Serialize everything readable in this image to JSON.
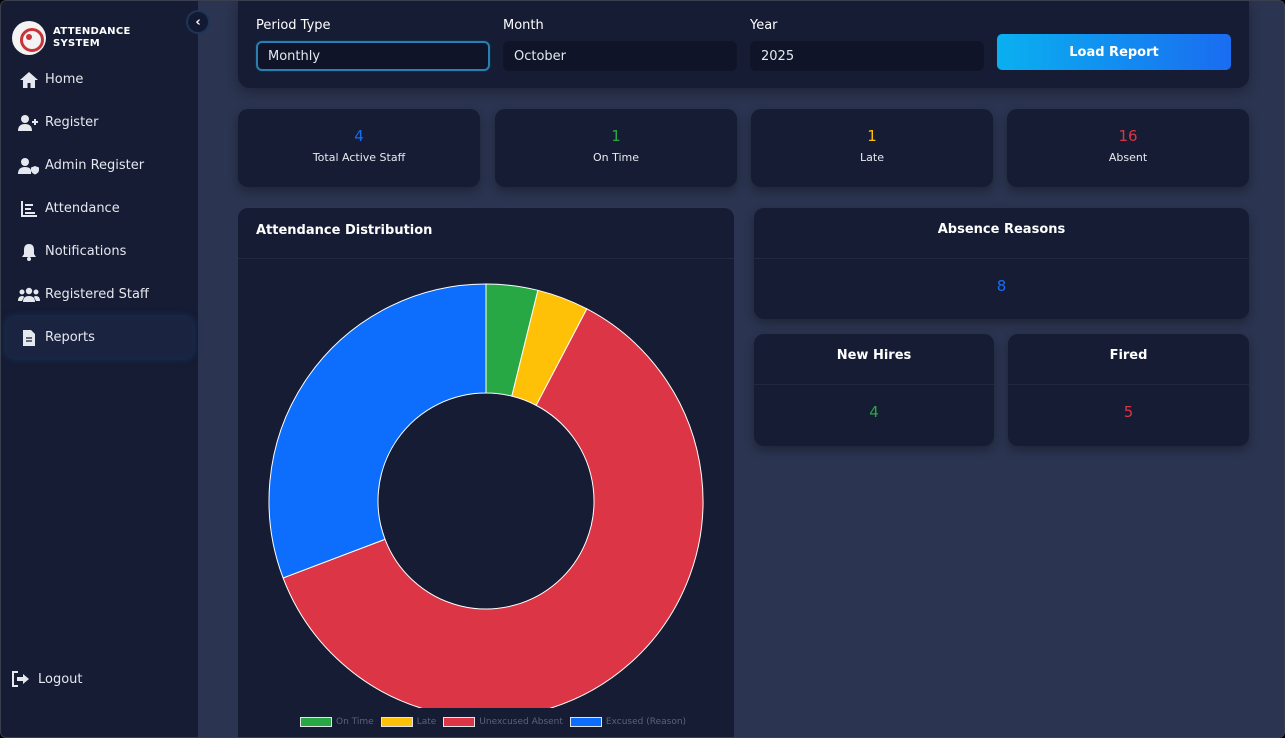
{
  "app": {
    "title_line1": "ATTENDANCE",
    "title_line2": "SYSTEM"
  },
  "sidebar": {
    "collapse_icon": "‹",
    "items": [
      {
        "label": "Home",
        "icon": "home-icon"
      },
      {
        "label": "Register",
        "icon": "user-plus-icon"
      },
      {
        "label": "Admin Register",
        "icon": "user-shield-icon"
      },
      {
        "label": "Attendance",
        "icon": "chart-icon"
      },
      {
        "label": "Notifications",
        "icon": "bell-icon"
      },
      {
        "label": "Registered Staff",
        "icon": "users-icon"
      },
      {
        "label": "Reports",
        "icon": "file-icon",
        "active": true
      }
    ],
    "logout": "Logout"
  },
  "filters": {
    "period_label": "Period Type",
    "period_value": "Monthly",
    "month_label": "Month",
    "month_value": "October",
    "year_label": "Year",
    "year_value": "2025",
    "load_button": "Load Report"
  },
  "stats": [
    {
      "value": "4",
      "label": "Total Active Staff",
      "color": "#1a6cf0"
    },
    {
      "value": "1",
      "label": "On Time",
      "color": "#28a745"
    },
    {
      "value": "1",
      "label": "Late",
      "color": "#ffc107"
    },
    {
      "value": "16",
      "label": "Absent",
      "color": "#dc3545"
    }
  ],
  "distribution": {
    "title": "Attendance Distribution"
  },
  "absence": {
    "title": "Absence Reasons",
    "value": "8",
    "color": "#1a6cf0"
  },
  "new_hires": {
    "title": "New Hires",
    "value": "4",
    "color": "#28a745"
  },
  "fired": {
    "title": "Fired",
    "value": "5",
    "color": "#dc3545"
  },
  "chart_data": {
    "type": "pie",
    "donut": true,
    "categories": [
      "On Time",
      "Late",
      "Unexcused Absent",
      "Excused (Reason)"
    ],
    "values": [
      1,
      1,
      16,
      8
    ],
    "colors": [
      "#28a745",
      "#ffc107",
      "#dc3545",
      "#0d6efd"
    ],
    "legend": "bottom"
  }
}
